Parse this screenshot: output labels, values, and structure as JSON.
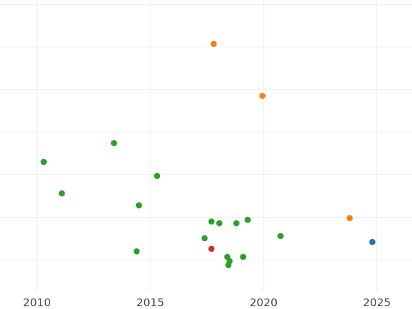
{
  "chart_data": {
    "type": "scatter",
    "title": "",
    "xlabel": "",
    "ylabel": "",
    "xlim": [
      2008.37,
      2026.55
    ],
    "ylim": [
      0.25,
      7.1
    ],
    "grid": true,
    "legend": "none",
    "x_ticks": [
      2010,
      2015,
      2020,
      2025
    ],
    "x_tick_labels": [
      "2010",
      "2015",
      "2020",
      "2025"
    ],
    "y_grid_values": [
      1,
      2,
      3,
      4,
      5,
      6,
      7
    ],
    "y_tick_labels": [],
    "series": [
      {
        "color": "#2ca02c",
        "points": [
          {
            "x": 2010.3,
            "y": 3.3
          },
          {
            "x": 2011.1,
            "y": 2.56
          },
          {
            "x": 2013.4,
            "y": 3.74
          },
          {
            "x": 2014.4,
            "y": 1.2
          },
          {
            "x": 2014.5,
            "y": 2.28
          },
          {
            "x": 2015.3,
            "y": 2.97
          },
          {
            "x": 2017.4,
            "y": 1.51
          },
          {
            "x": 2017.7,
            "y": 1.9
          },
          {
            "x": 2018.05,
            "y": 1.86
          },
          {
            "x": 2018.4,
            "y": 1.07
          },
          {
            "x": 2018.45,
            "y": 0.88
          },
          {
            "x": 2018.5,
            "y": 0.97
          },
          {
            "x": 2018.8,
            "y": 1.86
          },
          {
            "x": 2019.1,
            "y": 1.07
          },
          {
            "x": 2019.3,
            "y": 1.94
          },
          {
            "x": 2020.75,
            "y": 1.56
          }
        ]
      },
      {
        "color": "#ff7f0e",
        "points": [
          {
            "x": 2017.8,
            "y": 6.07
          },
          {
            "x": 2019.95,
            "y": 4.85
          },
          {
            "x": 2023.8,
            "y": 1.98
          }
        ]
      },
      {
        "color": "#d62728",
        "points": [
          {
            "x": 2017.7,
            "y": 1.26
          }
        ]
      },
      {
        "color": "#1f77b4",
        "points": [
          {
            "x": 2024.8,
            "y": 1.42
          }
        ]
      }
    ]
  }
}
